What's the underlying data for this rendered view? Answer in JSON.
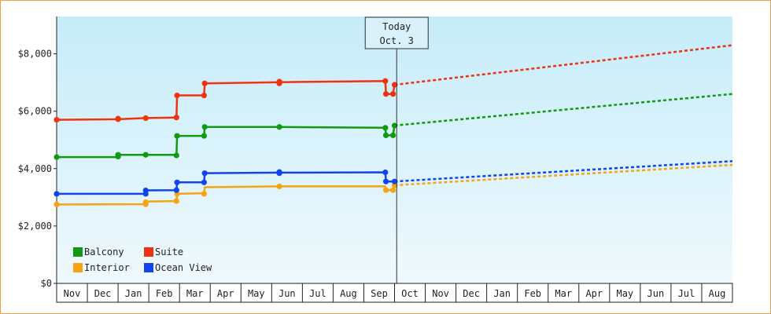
{
  "chart_data": {
    "type": "line",
    "y_axis": {
      "min": 0,
      "max": 9300,
      "ticks": [
        0,
        2000,
        4000,
        6000,
        8000
      ],
      "tick_labels": [
        "$0",
        "$2,000",
        "$4,000",
        "$6,000",
        "$8,000"
      ]
    },
    "x_axis": {
      "month_labels": [
        "Nov",
        "Dec",
        "Jan",
        "Feb",
        "Mar",
        "Apr",
        "May",
        "Jun",
        "Jul",
        "Aug",
        "Sep",
        "Oct",
        "Nov",
        "Dec",
        "Jan",
        "Feb",
        "Mar",
        "Apr",
        "May",
        "Jun",
        "Jul",
        "Aug"
      ],
      "range_months": [
        0,
        22
      ]
    },
    "today": {
      "label_line1": "Today",
      "label_line2": "Oct. 3",
      "x_month": 11.07
    },
    "series": [
      {
        "name": "Balcony",
        "color": "#119911",
        "history": [
          [
            0,
            4400
          ],
          [
            2.0,
            4400
          ],
          [
            2.0,
            4480
          ],
          [
            2.9,
            4480
          ],
          [
            3.9,
            4480
          ],
          [
            3.92,
            5140
          ],
          [
            4.8,
            5140
          ],
          [
            4.82,
            5450
          ],
          [
            7.25,
            5450
          ],
          [
            10.7,
            5420
          ],
          [
            10.72,
            5160
          ],
          [
            10.95,
            5160
          ],
          [
            11.0,
            5500
          ]
        ],
        "markers": [
          [
            0,
            4400
          ],
          [
            2.0,
            4420
          ],
          [
            2.0,
            4480
          ],
          [
            2.9,
            4480
          ],
          [
            3.9,
            4460
          ],
          [
            3.92,
            5140
          ],
          [
            4.8,
            5140
          ],
          [
            4.82,
            5450
          ],
          [
            7.25,
            5450
          ],
          [
            10.7,
            5420
          ],
          [
            10.72,
            5160
          ],
          [
            10.95,
            5160
          ],
          [
            11.0,
            5500
          ]
        ],
        "forecast": [
          [
            11.0,
            5500
          ],
          [
            22.0,
            6600
          ]
        ]
      },
      {
        "name": "Suite",
        "color": "#ee3311",
        "history": [
          [
            0,
            5700
          ],
          [
            2.0,
            5720
          ],
          [
            2.9,
            5760
          ],
          [
            3.9,
            5780
          ],
          [
            3.92,
            6550
          ],
          [
            4.8,
            6550
          ],
          [
            4.82,
            6970
          ],
          [
            7.25,
            7010
          ],
          [
            10.7,
            7050
          ],
          [
            10.72,
            6600
          ],
          [
            10.95,
            6600
          ],
          [
            11.0,
            6920
          ]
        ],
        "markers": [
          [
            0,
            5700
          ],
          [
            2.0,
            5720
          ],
          [
            2.0,
            5740
          ],
          [
            2.9,
            5760
          ],
          [
            3.9,
            5780
          ],
          [
            3.92,
            6550
          ],
          [
            4.8,
            6550
          ],
          [
            4.82,
            6970
          ],
          [
            7.25,
            6970
          ],
          [
            7.25,
            7030
          ],
          [
            10.7,
            7050
          ],
          [
            10.72,
            6600
          ],
          [
            10.95,
            6600
          ],
          [
            11.0,
            6920
          ]
        ],
        "forecast": [
          [
            11.0,
            6920
          ],
          [
            22.0,
            8300
          ]
        ]
      },
      {
        "name": "Interior",
        "color": "#f5a511",
        "history": [
          [
            0,
            2750
          ],
          [
            2.9,
            2760
          ],
          [
            2.9,
            2850
          ],
          [
            3.9,
            2870
          ],
          [
            3.92,
            3120
          ],
          [
            4.8,
            3140
          ],
          [
            4.82,
            3350
          ],
          [
            7.25,
            3380
          ],
          [
            10.7,
            3380
          ],
          [
            10.72,
            3250
          ],
          [
            10.95,
            3250
          ],
          [
            11.0,
            3420
          ]
        ],
        "markers": [
          [
            0,
            2750
          ],
          [
            2.9,
            2760
          ],
          [
            2.9,
            2830
          ],
          [
            3.9,
            2870
          ],
          [
            3.92,
            3120
          ],
          [
            4.8,
            3120
          ],
          [
            7.25,
            3380
          ],
          [
            10.72,
            3250
          ],
          [
            10.95,
            3250
          ],
          [
            11.0,
            3420
          ]
        ],
        "forecast": [
          [
            11.0,
            3420
          ],
          [
            22.0,
            4130
          ]
        ]
      },
      {
        "name": "Ocean View",
        "color": "#1144ee",
        "history": [
          [
            0,
            3120
          ],
          [
            2.9,
            3120
          ],
          [
            2.9,
            3240
          ],
          [
            3.9,
            3250
          ],
          [
            3.92,
            3520
          ],
          [
            4.8,
            3520
          ],
          [
            4.82,
            3840
          ],
          [
            7.25,
            3860
          ],
          [
            10.7,
            3870
          ],
          [
            10.72,
            3550
          ],
          [
            11.0,
            3550
          ]
        ],
        "markers": [
          [
            0,
            3120
          ],
          [
            2.9,
            3120
          ],
          [
            2.9,
            3240
          ],
          [
            3.9,
            3250
          ],
          [
            3.92,
            3520
          ],
          [
            4.8,
            3520
          ],
          [
            4.82,
            3840
          ],
          [
            7.25,
            3840
          ],
          [
            7.25,
            3880
          ],
          [
            10.7,
            3870
          ],
          [
            10.72,
            3550
          ],
          [
            11.0,
            3550
          ]
        ],
        "forecast": [
          [
            11.0,
            3550
          ],
          [
            22.0,
            4260
          ]
        ]
      }
    ],
    "legend": {
      "placement": "bottom-left",
      "entries": [
        {
          "name": "Balcony",
          "color": "#119911"
        },
        {
          "name": "Suite",
          "color": "#ee3311"
        },
        {
          "name": "Interior",
          "color": "#f5a511"
        },
        {
          "name": "Ocean View",
          "color": "#1144ee"
        }
      ]
    },
    "grid": false
  }
}
